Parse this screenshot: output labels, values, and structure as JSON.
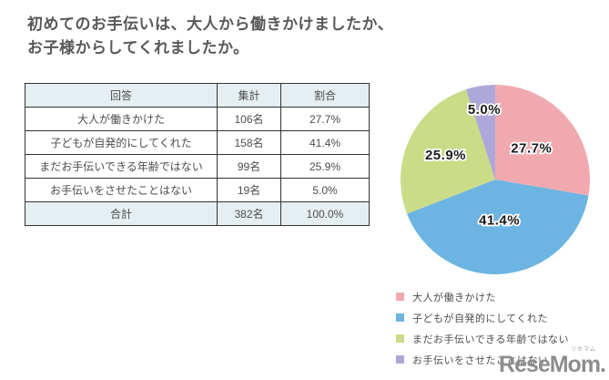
{
  "title": "初めてのお手伝いは、大人から働きかけましたか、\nお子様からしてくれましたか。",
  "title_line1": "初めてのお手伝いは、大人から働きかけましたか、",
  "title_line2": "お子様からしてくれましたか。",
  "table": {
    "headers": [
      "回答",
      "集計",
      "割合"
    ],
    "rows": [
      [
        "大人が働きかけた",
        "106名",
        "27.7%"
      ],
      [
        "子どもが自発的にしてくれた",
        "158名",
        "41.4%"
      ],
      [
        "まだお手伝いできる年齢ではない",
        "99名",
        "25.9%"
      ],
      [
        "お手伝いをさせたことはない",
        "19名",
        "5.0%"
      ]
    ],
    "total_row": [
      "合計",
      "382名",
      "100.0%"
    ]
  },
  "chart_data": {
    "type": "pie",
    "title": "初めてのお手伝いは、大人から働きかけましたか、お子様からしてくれましたか。",
    "labels": [
      "大人が働きかけた",
      "子どもが自発的にしてくれた",
      "まだお手伝いできる年齢ではない",
      "お手伝いをさせたことはない"
    ],
    "values": [
      27.7,
      41.4,
      25.9,
      5.0
    ],
    "counts": [
      106,
      158,
      99,
      19
    ],
    "total_count": 382,
    "slice_labels": [
      "27.7%",
      "41.4%",
      "25.9%",
      "5.0%"
    ],
    "colors": [
      "#f1a9b0",
      "#6cb5e2",
      "#cbdc88",
      "#aea8da"
    ],
    "start_angle_deg": 0,
    "direction": "clockwise",
    "legend_position": "bottom-right"
  },
  "legend": {
    "items": [
      {
        "label": "大人が働きかけた",
        "color": "#f1a9b0"
      },
      {
        "label": "子どもが自発的にしてくれた",
        "color": "#6cb5e2"
      },
      {
        "label": "まだお手伝いできる年齢ではない",
        "color": "#cbdc88"
      },
      {
        "label": "お手伝いをさせたことはない",
        "color": "#aea8da"
      }
    ]
  },
  "logo": {
    "text": "ReseMom.",
    "ruby": "リセマム"
  }
}
